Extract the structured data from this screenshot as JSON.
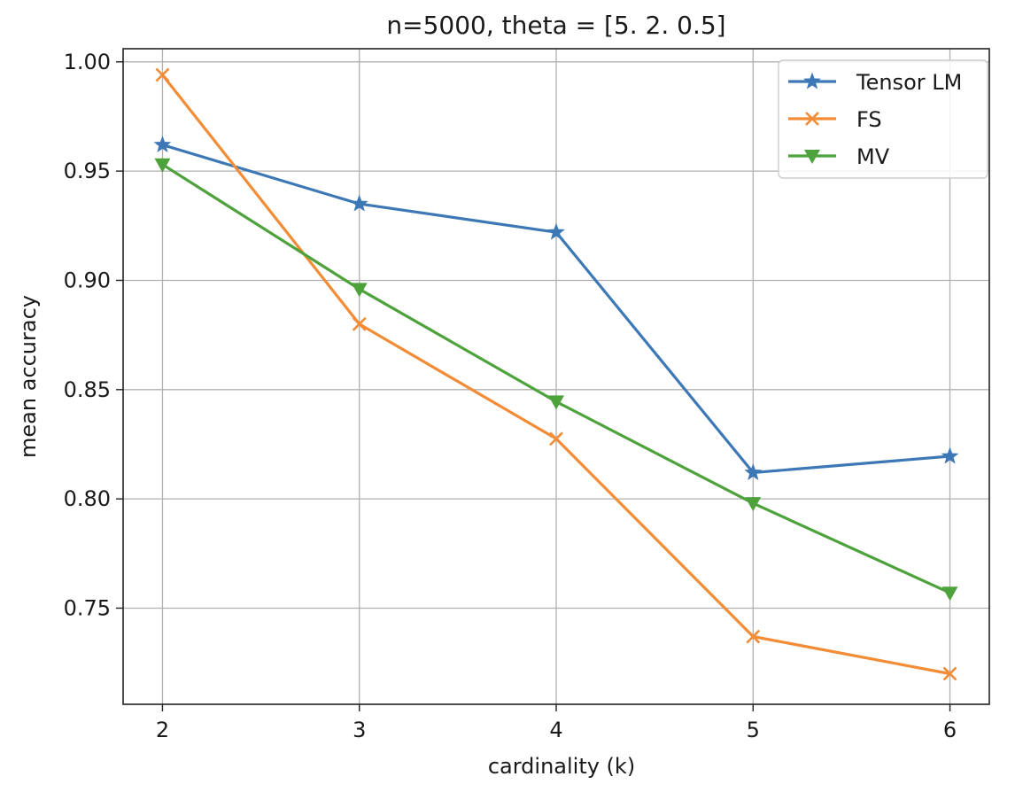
{
  "chart_data": {
    "type": "line",
    "title": "n=5000, theta = [5.  2.  0.5]",
    "xlabel": "cardinality (k)",
    "ylabel": "mean accuracy",
    "x": [
      2,
      3,
      4,
      5,
      6
    ],
    "x_ticks": [
      "2",
      "3",
      "4",
      "5",
      "6"
    ],
    "y_ticks": [
      "0.75",
      "0.80",
      "0.85",
      "0.90",
      "0.95",
      "1.00"
    ],
    "xlim": [
      1.8,
      6.2
    ],
    "ylim": [
      0.706,
      1.006
    ],
    "grid": true,
    "legend_position": "top-right",
    "series": [
      {
        "name": "Tensor LM",
        "color": "#3d78b6",
        "marker": "star",
        "values": [
          0.962,
          0.935,
          0.922,
          0.812,
          0.8195
        ]
      },
      {
        "name": "FS",
        "color": "#f28c36",
        "marker": "x",
        "values": [
          0.994,
          0.88,
          0.8275,
          0.737,
          0.72
        ]
      },
      {
        "name": "MV",
        "color": "#4ea23c",
        "marker": "triangle-down",
        "values": [
          0.953,
          0.896,
          0.8445,
          0.798,
          0.757
        ]
      }
    ]
  }
}
